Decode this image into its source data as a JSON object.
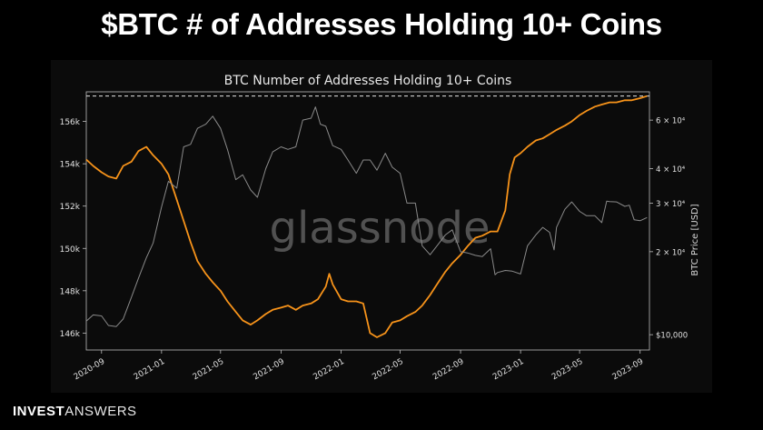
{
  "slide": {
    "title": "$BTC # of Addresses Holding 10+ Coins"
  },
  "brand": {
    "bold": "INVEST",
    "light": "ANSWERS"
  },
  "chart_data": {
    "type": "line",
    "title": "BTC Number of Addresses Holding 10+ Coins",
    "watermark": "glassnode",
    "xlabel": "",
    "ylabel": "",
    "ylabel_right": "BTC Price [USD]",
    "x_range": [
      "2020-08-01",
      "2023-09-20"
    ],
    "x_ticks": [
      "2020-09",
      "2021-01",
      "2021-05",
      "2021-09",
      "2022-01",
      "2022-05",
      "2022-09",
      "2023-01",
      "2023-05",
      "2023-09"
    ],
    "y_left_range": [
      145200,
      157400
    ],
    "y_left_ticks": [
      146000,
      148000,
      150000,
      152000,
      154000,
      156000
    ],
    "y_left_tick_labels": [
      "146k",
      "148k",
      "150k",
      "152k",
      "154k",
      "156k"
    ],
    "y_right_scale": "log",
    "y_right_range": [
      8800,
      76000
    ],
    "y_right_ticks": [
      10000,
      20000,
      30000,
      40000,
      60000
    ],
    "y_right_tick_labels": [
      "$10,000",
      "2 × 10⁴",
      "3 × 10⁴",
      "4 × 10⁴",
      "6 × 10⁴"
    ],
    "reference_line": {
      "axis": "left",
      "value": 157200,
      "style": "dashed"
    },
    "grid": false,
    "colors": {
      "addresses": "#f7931a",
      "price": "#8a8a8a",
      "background": "#0b0b0b",
      "text": "#e0e0e0"
    },
    "series": [
      {
        "name": "Addresses Holding 10+ Coins",
        "axis": "left",
        "points": [
          [
            "2020-08-01",
            154200
          ],
          [
            "2020-08-15",
            153900
          ],
          [
            "2020-09-01",
            153600
          ],
          [
            "2020-09-15",
            153400
          ],
          [
            "2020-10-01",
            153300
          ],
          [
            "2020-10-15",
            153900
          ],
          [
            "2020-11-01",
            154100
          ],
          [
            "2020-11-15",
            154600
          ],
          [
            "2020-12-01",
            154800
          ],
          [
            "2020-12-15",
            154400
          ],
          [
            "2021-01-01",
            154000
          ],
          [
            "2021-01-15",
            153500
          ],
          [
            "2021-02-01",
            152300
          ],
          [
            "2021-02-15",
            151300
          ],
          [
            "2021-03-01",
            150300
          ],
          [
            "2021-03-15",
            149400
          ],
          [
            "2021-04-01",
            148800
          ],
          [
            "2021-04-15",
            148400
          ],
          [
            "2021-05-01",
            148000
          ],
          [
            "2021-05-15",
            147500
          ],
          [
            "2021-06-01",
            147000
          ],
          [
            "2021-06-15",
            146600
          ],
          [
            "2021-07-01",
            146400
          ],
          [
            "2021-07-15",
            146600
          ],
          [
            "2021-08-01",
            146900
          ],
          [
            "2021-08-15",
            147100
          ],
          [
            "2021-09-01",
            147200
          ],
          [
            "2021-09-15",
            147300
          ],
          [
            "2021-10-01",
            147100
          ],
          [
            "2021-10-15",
            147300
          ],
          [
            "2021-11-01",
            147400
          ],
          [
            "2021-11-15",
            147600
          ],
          [
            "2021-12-01",
            148200
          ],
          [
            "2021-12-08",
            148800
          ],
          [
            "2021-12-15",
            148300
          ],
          [
            "2022-01-01",
            147600
          ],
          [
            "2022-01-15",
            147500
          ],
          [
            "2022-02-01",
            147500
          ],
          [
            "2022-02-15",
            147400
          ],
          [
            "2022-03-01",
            146000
          ],
          [
            "2022-03-15",
            145800
          ],
          [
            "2022-04-01",
            146000
          ],
          [
            "2022-04-15",
            146500
          ],
          [
            "2022-05-01",
            146600
          ],
          [
            "2022-05-15",
            146800
          ],
          [
            "2022-06-01",
            147000
          ],
          [
            "2022-06-15",
            147300
          ],
          [
            "2022-07-01",
            147800
          ],
          [
            "2022-07-15",
            148300
          ],
          [
            "2022-08-01",
            148900
          ],
          [
            "2022-08-15",
            149300
          ],
          [
            "2022-09-01",
            149700
          ],
          [
            "2022-09-15",
            150100
          ],
          [
            "2022-10-01",
            150500
          ],
          [
            "2022-10-15",
            150600
          ],
          [
            "2022-11-01",
            150800
          ],
          [
            "2022-11-15",
            150800
          ],
          [
            "2022-12-01",
            151800
          ],
          [
            "2022-12-10",
            153500
          ],
          [
            "2022-12-20",
            154300
          ],
          [
            "2023-01-01",
            154500
          ],
          [
            "2023-01-15",
            154800
          ],
          [
            "2023-02-01",
            155100
          ],
          [
            "2023-02-15",
            155200
          ],
          [
            "2023-03-01",
            155400
          ],
          [
            "2023-03-15",
            155600
          ],
          [
            "2023-04-01",
            155800
          ],
          [
            "2023-04-15",
            156000
          ],
          [
            "2023-05-01",
            156300
          ],
          [
            "2023-05-15",
            156500
          ],
          [
            "2023-06-01",
            156700
          ],
          [
            "2023-06-15",
            156800
          ],
          [
            "2023-07-01",
            156900
          ],
          [
            "2023-07-15",
            156900
          ],
          [
            "2023-08-01",
            157000
          ],
          [
            "2023-08-15",
            157000
          ],
          [
            "2023-09-01",
            157100
          ],
          [
            "2023-09-15",
            157200
          ]
        ]
      },
      {
        "name": "BTC Price [USD]",
        "axis": "right",
        "points": [
          [
            "2020-08-01",
            11200
          ],
          [
            "2020-08-15",
            11800
          ],
          [
            "2020-09-01",
            11700
          ],
          [
            "2020-09-15",
            10800
          ],
          [
            "2020-10-01",
            10700
          ],
          [
            "2020-10-15",
            11400
          ],
          [
            "2020-11-01",
            13700
          ],
          [
            "2020-11-15",
            16000
          ],
          [
            "2020-12-01",
            19000
          ],
          [
            "2020-12-15",
            21500
          ],
          [
            "2021-01-01",
            29000
          ],
          [
            "2021-01-15",
            36000
          ],
          [
            "2021-02-01",
            34000
          ],
          [
            "2021-02-15",
            48000
          ],
          [
            "2021-03-01",
            49000
          ],
          [
            "2021-03-15",
            56000
          ],
          [
            "2021-04-01",
            58000
          ],
          [
            "2021-04-15",
            62000
          ],
          [
            "2021-05-01",
            56000
          ],
          [
            "2021-05-15",
            47000
          ],
          [
            "2021-06-01",
            36500
          ],
          [
            "2021-06-15",
            38000
          ],
          [
            "2021-07-01",
            33500
          ],
          [
            "2021-07-15",
            31500
          ],
          [
            "2021-08-01",
            40000
          ],
          [
            "2021-08-15",
            46000
          ],
          [
            "2021-09-01",
            48000
          ],
          [
            "2021-09-15",
            47000
          ],
          [
            "2021-10-01",
            48000
          ],
          [
            "2021-10-15",
            60000
          ],
          [
            "2021-11-01",
            61000
          ],
          [
            "2021-11-10",
            67000
          ],
          [
            "2021-11-20",
            58000
          ],
          [
            "2021-12-01",
            57000
          ],
          [
            "2021-12-15",
            48500
          ],
          [
            "2022-01-01",
            47000
          ],
          [
            "2022-01-15",
            43000
          ],
          [
            "2022-02-01",
            38500
          ],
          [
            "2022-02-15",
            43000
          ],
          [
            "2022-03-01",
            43000
          ],
          [
            "2022-03-15",
            39500
          ],
          [
            "2022-04-01",
            45500
          ],
          [
            "2022-04-15",
            40500
          ],
          [
            "2022-05-01",
            38500
          ],
          [
            "2022-05-15",
            30000
          ],
          [
            "2022-06-01",
            30000
          ],
          [
            "2022-06-15",
            21000
          ],
          [
            "2022-07-01",
            19500
          ],
          [
            "2022-07-15",
            21000
          ],
          [
            "2022-08-01",
            23000
          ],
          [
            "2022-08-15",
            24000
          ],
          [
            "2022-09-01",
            20000
          ],
          [
            "2022-09-15",
            19800
          ],
          [
            "2022-10-01",
            19400
          ],
          [
            "2022-10-15",
            19200
          ],
          [
            "2022-11-01",
            20500
          ],
          [
            "2022-11-10",
            16500
          ],
          [
            "2022-11-15",
            16800
          ],
          [
            "2022-12-01",
            17100
          ],
          [
            "2022-12-15",
            17000
          ],
          [
            "2023-01-01",
            16600
          ],
          [
            "2023-01-15",
            21000
          ],
          [
            "2023-02-01",
            23000
          ],
          [
            "2023-02-15",
            24500
          ],
          [
            "2023-03-01",
            23500
          ],
          [
            "2023-03-10",
            20300
          ],
          [
            "2023-03-15",
            24500
          ],
          [
            "2023-04-01",
            28500
          ],
          [
            "2023-04-15",
            30300
          ],
          [
            "2023-05-01",
            28000
          ],
          [
            "2023-05-15",
            27000
          ],
          [
            "2023-06-01",
            27000
          ],
          [
            "2023-06-15",
            25500
          ],
          [
            "2023-06-25",
            30500
          ],
          [
            "2023-07-01",
            30400
          ],
          [
            "2023-07-15",
            30300
          ],
          [
            "2023-08-01",
            29200
          ],
          [
            "2023-08-10",
            29500
          ],
          [
            "2023-08-20",
            26100
          ],
          [
            "2023-09-01",
            25900
          ],
          [
            "2023-09-15",
            26600
          ]
        ]
      }
    ]
  }
}
